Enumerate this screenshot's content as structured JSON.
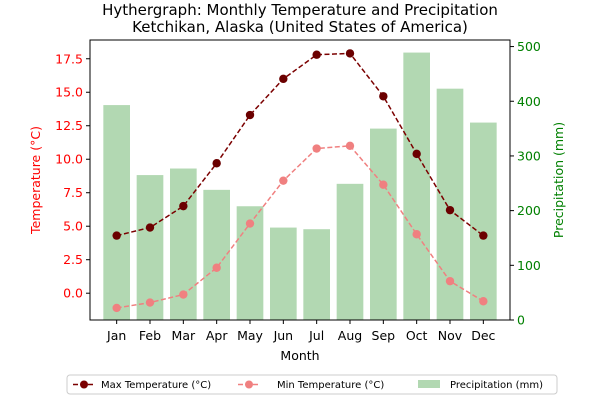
{
  "chart_data": {
    "type": "bar+line",
    "title_line1": "Hythergraph: Monthly Temperature and Precipitation",
    "title_line2": "Ketchikan, Alaska (United States of America)",
    "xlabel": "Month",
    "ylabel_left": "Temperature (°C)",
    "ylabel_right": "Precipitation (mm)",
    "categories": [
      "Jan",
      "Feb",
      "Mar",
      "Apr",
      "May",
      "Jun",
      "Jul",
      "Aug",
      "Sep",
      "Oct",
      "Nov",
      "Dec"
    ],
    "ylim_left": [
      -2.0,
      18.9
    ],
    "ylim_right": [
      0,
      512
    ],
    "left_ticks": [
      0.0,
      2.5,
      5.0,
      7.5,
      10.0,
      12.5,
      15.0,
      17.5
    ],
    "left_tick_labels": [
      "0.0",
      "2.5",
      "5.0",
      "7.5",
      "10.0",
      "12.5",
      "15.0",
      "17.5"
    ],
    "right_ticks": [
      0,
      100,
      200,
      300,
      400,
      500
    ],
    "right_tick_labels": [
      "0",
      "100",
      "200",
      "300",
      "400",
      "500"
    ],
    "series": [
      {
        "name": "Max Temperature (°C)",
        "kind": "line",
        "axis": "left",
        "color": "#7b0000",
        "values": [
          4.3,
          4.9,
          6.5,
          9.7,
          13.3,
          16.0,
          17.8,
          17.9,
          14.7,
          10.4,
          6.2,
          4.3
        ]
      },
      {
        "name": "Min Temperature (°C)",
        "kind": "line",
        "axis": "left",
        "color": "#f08080",
        "values": [
          -1.1,
          -0.7,
          -0.1,
          1.9,
          5.2,
          8.4,
          10.8,
          11.0,
          8.1,
          4.4,
          0.9,
          -0.6
        ]
      },
      {
        "name": "Precipitation (mm)",
        "kind": "bar",
        "axis": "right",
        "color": "#b2d8b2",
        "values": [
          393,
          265,
          277,
          238,
          208,
          169,
          166,
          249,
          350,
          489,
          423,
          361
        ]
      }
    ],
    "legend_placement": "bottom-center",
    "grid": false,
    "left_axis_color": "#ff0000",
    "right_axis_color": "#008000"
  }
}
